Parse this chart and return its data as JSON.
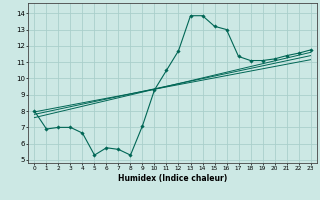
{
  "title": "",
  "xlabel": "Humidex (Indice chaleur)",
  "ylabel": "",
  "xlim": [
    -0.5,
    23.5
  ],
  "ylim": [
    4.8,
    14.6
  ],
  "yticks": [
    5,
    6,
    7,
    8,
    9,
    10,
    11,
    12,
    13,
    14
  ],
  "xticks": [
    0,
    1,
    2,
    3,
    4,
    5,
    6,
    7,
    8,
    9,
    10,
    11,
    12,
    13,
    14,
    15,
    16,
    17,
    18,
    19,
    20,
    21,
    22,
    23
  ],
  "background_color": "#cce8e4",
  "grid_color": "#aacfcb",
  "line_color": "#006655",
  "curve1_x": [
    0,
    1,
    2,
    3,
    4,
    5,
    6,
    7,
    8,
    9,
    10,
    11,
    12,
    13,
    14,
    15,
    16,
    17,
    18,
    19,
    20,
    21,
    22,
    23
  ],
  "curve1_y": [
    8.0,
    6.9,
    7.0,
    7.0,
    6.65,
    5.3,
    5.75,
    5.65,
    5.3,
    7.1,
    9.3,
    10.5,
    11.7,
    13.85,
    13.85,
    13.2,
    13.0,
    11.35,
    11.1,
    11.1,
    11.2,
    11.4,
    11.55,
    11.75
  ],
  "regression_lines": [
    {
      "x": [
        0,
        23
      ],
      "y": [
        7.8,
        11.4
      ]
    },
    {
      "x": [
        0,
        23
      ],
      "y": [
        7.95,
        11.15
      ]
    },
    {
      "x": [
        0,
        23
      ],
      "y": [
        7.6,
        11.6
      ]
    }
  ]
}
